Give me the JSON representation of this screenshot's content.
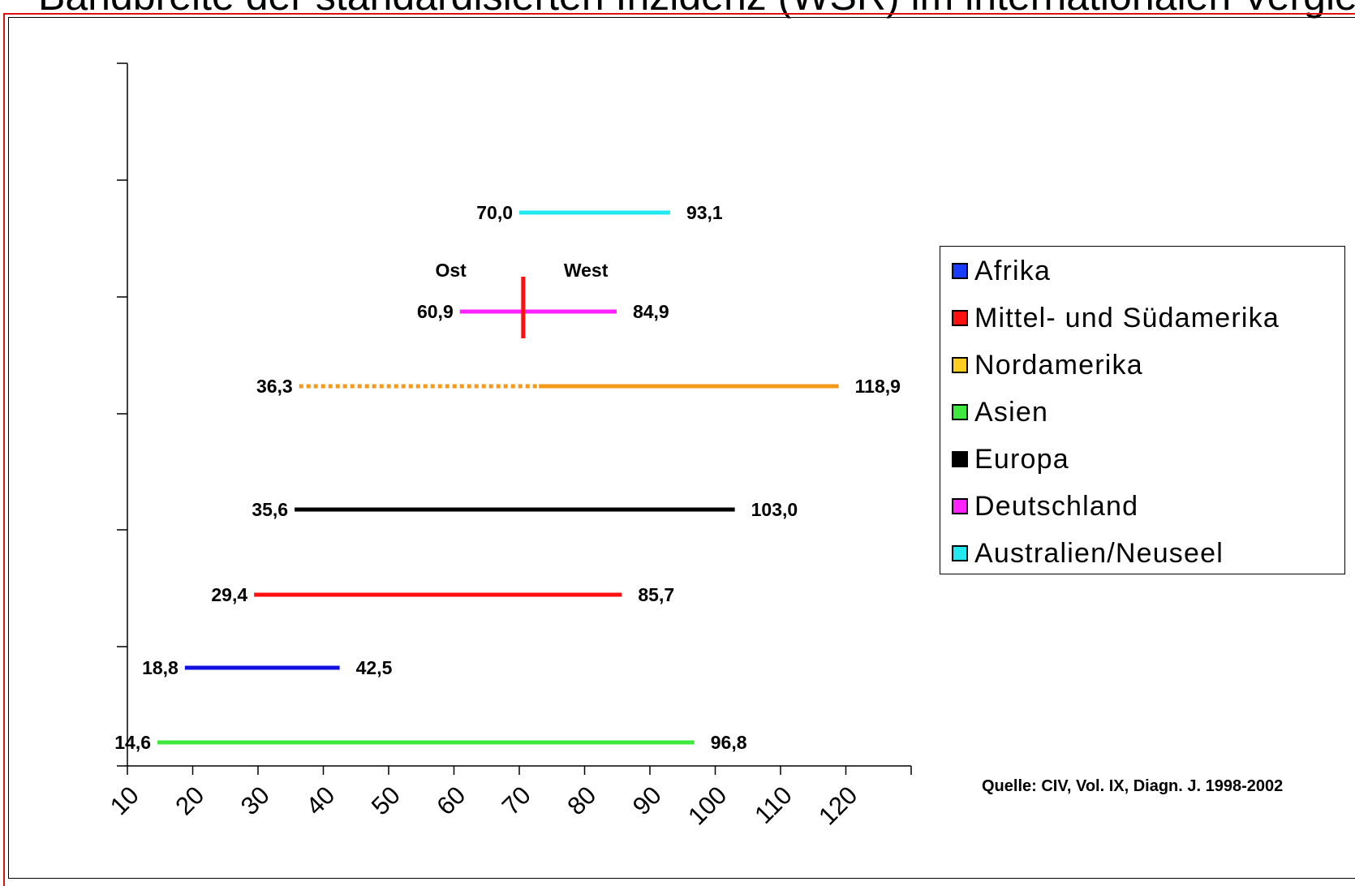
{
  "title": "Bandbreite der standardisierten Inzidenz (WSR) im internationalen Vergleich",
  "chart_data": {
    "type": "range",
    "xlim": [
      10,
      130
    ],
    "x_ticks": [
      10,
      20,
      30,
      40,
      50,
      60,
      70,
      80,
      90,
      100,
      110,
      120
    ],
    "series": [
      {
        "name": "Australien/Neuseel",
        "color": "#22e8f0",
        "min": 70.0,
        "max": 93.1,
        "min_label": "70,0",
        "max_label": "93,1"
      },
      {
        "name": "Deutschland",
        "color": "#ff22ff",
        "min": 60.9,
        "max": 84.9,
        "min_label": "60,9",
        "max_label": "84,9"
      },
      {
        "name": "Nordamerika",
        "color": "#f39a1a",
        "min": 36.3,
        "max": 118.9,
        "min_label": "36,3",
        "max_label": "118,9"
      },
      {
        "name": "Europa",
        "color": "#000000",
        "min": 35.6,
        "max": 103.0,
        "min_label": "35,6",
        "max_label": "103,0"
      },
      {
        "name": "Mittel- und Südamerika",
        "color": "#ff1010",
        "min": 29.4,
        "max": 85.7,
        "min_label": "29,4",
        "max_label": "85,7"
      },
      {
        "name": "Afrika",
        "color": "#1010e0",
        "min": 18.8,
        "max": 42.5,
        "min_label": "18,8",
        "max_label": "42,5"
      },
      {
        "name": "Asien",
        "color": "#3ee83e",
        "min": 14.6,
        "max": 96.8,
        "min_label": "14,6",
        "max_label": "96,8"
      }
    ],
    "annotations": {
      "east_label": "Ost",
      "west_label": "West",
      "divider_series": "Deutschland",
      "divider_color": "#ff1010",
      "dotted_segment": {
        "series": "Nordamerika",
        "from": 36.3,
        "to": 73.0
      }
    }
  },
  "legend": {
    "placement": "right",
    "items": [
      {
        "label": "Afrika",
        "color": "#1a3cff"
      },
      {
        "label": "Mittel- und Südamerika",
        "color": "#ff1010"
      },
      {
        "label": "Nordamerika",
        "color": "#ffcc22"
      },
      {
        "label": "Asien",
        "color": "#3ee83e"
      },
      {
        "label": "Europa",
        "color": "#000000"
      },
      {
        "label": "Deutschland",
        "color": "#ff22ff"
      },
      {
        "label": "Australien/Neuseel",
        "color": "#22e8f0"
      }
    ]
  },
  "source": "Quelle: CIV, Vol. IX, Diagn. J. 1998-2002"
}
